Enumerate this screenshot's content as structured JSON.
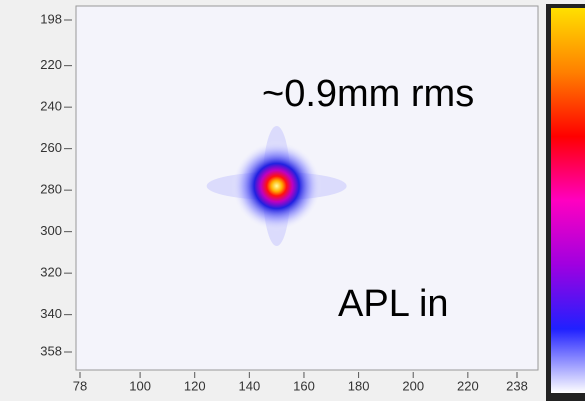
{
  "chart_data": {
    "type": "heatmap",
    "xlim": [
      78,
      238
    ],
    "xticks": [
      78,
      100,
      120,
      140,
      160,
      180,
      200,
      220,
      238
    ],
    "ylim": [
      198,
      358
    ],
    "yticks": [
      198,
      220,
      240,
      260,
      280,
      300,
      320,
      340,
      358
    ],
    "spot": {
      "x": 150,
      "y": 278
    },
    "colormap": [
      "#ffffff",
      "#2020ff",
      "#a000e0",
      "#ff00c0",
      "#ff0000",
      "#ff8000",
      "#ffe000"
    ],
    "annotations": [
      "~0.9mm rms",
      "APL in"
    ]
  }
}
